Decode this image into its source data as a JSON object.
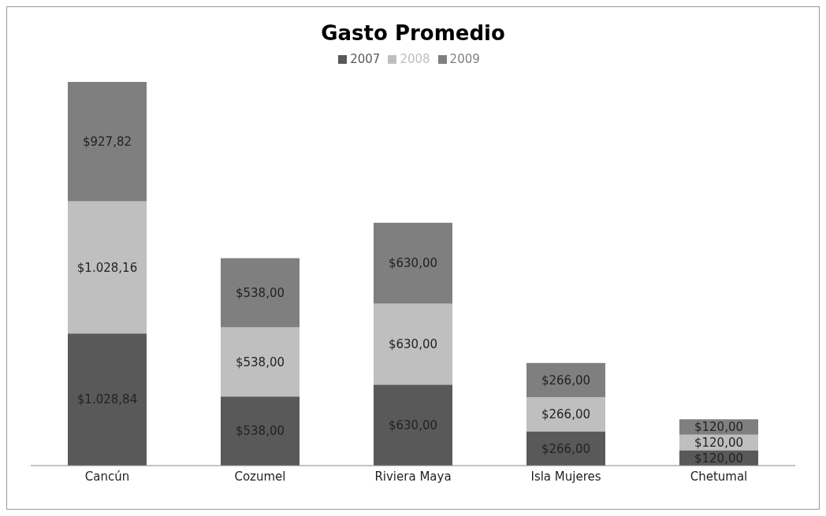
{
  "chart_data": {
    "type": "bar",
    "title": "Gasto Promedio",
    "stacked": true,
    "legend": "top",
    "grid": false,
    "categories": [
      "Cancún",
      "Cozumel",
      "Riviera Maya",
      "Isla Mujeres",
      "Chetumal"
    ],
    "series": [
      {
        "name": "2007",
        "color": "#595959",
        "values": [
          1028.84,
          538,
          630,
          266,
          120
        ],
        "value_labels": [
          "$1.028,84",
          "$538,00",
          "$630,00",
          "$266,00",
          "$120,00"
        ]
      },
      {
        "name": "2008",
        "color": "#bfbfbf",
        "values": [
          1028.16,
          538,
          630,
          266,
          120
        ],
        "value_labels": [
          "$1.028,16",
          "$538,00",
          "$630,00",
          "$266,00",
          "$120,00"
        ]
      },
      {
        "name": "2009",
        "color": "#7f7f7f",
        "values": [
          927.82,
          538,
          630,
          266,
          120
        ],
        "value_labels": [
          "$927,82",
          "$538,00",
          "$630,00",
          "$266,00",
          "$120,00"
        ]
      }
    ]
  }
}
